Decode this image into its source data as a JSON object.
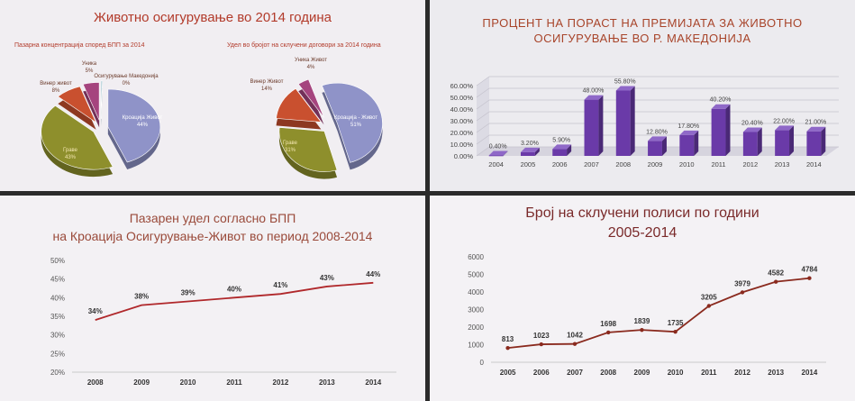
{
  "chart_data": [
    {
      "type": "pie",
      "title": "Животно осигурување во 2014 година",
      "subtitle": "Пазарна концентрација според БПП за 2014",
      "slices": [
        {
          "label": "Кроација Живот",
          "pct_label": "44%",
          "value": 44,
          "color": "#8f93c8"
        },
        {
          "label": "Граве",
          "pct_label": "43%",
          "value": 43,
          "color": "#8e8f2c"
        },
        {
          "label": "Винер живот",
          "pct_label": "8%",
          "value": 8,
          "color": "#c9502f"
        },
        {
          "label": "Уника",
          "pct_label": "5%",
          "value": 5,
          "color": "#a5447e"
        },
        {
          "label": "Осигурување Македонија",
          "pct_label": "0%",
          "value": 0,
          "color": "#8ab5c2"
        }
      ]
    },
    {
      "type": "pie",
      "subtitle": "Удел во бројот на склучени договори за 2014 година",
      "slices": [
        {
          "label": "Кроација - Живот",
          "pct_label": "51%",
          "value": 51,
          "color": "#8f93c8"
        },
        {
          "label": "Граве",
          "pct_label": "31%",
          "value": 31,
          "color": "#8e8f2c"
        },
        {
          "label": "Винер Живот",
          "pct_label": "14%",
          "value": 14,
          "color": "#c9502f"
        },
        {
          "label": "Уника Живот",
          "pct_label": "4%",
          "value": 4,
          "color": "#a5447e"
        }
      ]
    },
    {
      "type": "bar",
      "title_lines": [
        "ПРОЦЕНТ НА ПОРАСТ НА ПРЕМИЈАТА ЗА ЖИВОТНО",
        "ОСИГУРУВАЊЕ ВО Р. МАКЕДОНИЈА"
      ],
      "categories": [
        "2004",
        "2005",
        "2006",
        "2007",
        "2008",
        "2009",
        "2010",
        "2011",
        "2012",
        "2013",
        "2014"
      ],
      "values": [
        0.4,
        3.2,
        5.9,
        48.0,
        55.8,
        12.8,
        17.8,
        40.2,
        20.4,
        22.0,
        21.0
      ],
      "value_labels": [
        "0.40%",
        "3.20%",
        "5.90%",
        "48.00%",
        "55.80%",
        "12.80%",
        "17.80%",
        "40.20%",
        "20.40%",
        "22.00%",
        "21.00%"
      ],
      "y_ticks": [
        "0.00%",
        "10.00%",
        "20.00%",
        "30.00%",
        "40.00%",
        "50.00%",
        "60.00%"
      ],
      "ylim": [
        0,
        60
      ],
      "bar_color": "#6a3aa8"
    },
    {
      "type": "line",
      "title_lines": [
        "Пазарен удел согласно БПП",
        "на Кроација Осигурување-Живот во период 2008-2014"
      ],
      "categories": [
        "2008",
        "2009",
        "2010",
        "2011",
        "2012",
        "2013",
        "2014"
      ],
      "values": [
        34,
        38,
        39,
        40,
        41,
        43,
        44
      ],
      "value_labels": [
        "34%",
        "38%",
        "39%",
        "40%",
        "41%",
        "43%",
        "44%"
      ],
      "y_ticks": [
        "20%",
        "25%",
        "30%",
        "35%",
        "40%",
        "45%",
        "50%"
      ],
      "ylim": [
        20,
        50
      ],
      "line_color": "#b0282b"
    },
    {
      "type": "line",
      "title_lines": [
        "Број на склучени полиси по години",
        "2005-2014"
      ],
      "categories": [
        "2005",
        "2006",
        "2007",
        "2008",
        "2009",
        "2010",
        "2011",
        "2012",
        "2013",
        "2014"
      ],
      "values": [
        813,
        1023,
        1042,
        1698,
        1839,
        1735,
        3205,
        3979,
        4582,
        4784
      ],
      "value_labels": [
        "813",
        "1023",
        "1042",
        "1698",
        "1839",
        "1735",
        "3205",
        "3979",
        "4582",
        "4784"
      ],
      "y_ticks": [
        "0",
        "1000",
        "2000",
        "3000",
        "4000",
        "5000",
        "6000"
      ],
      "ylim": [
        0,
        6000
      ],
      "line_color": "#8a2a1e"
    }
  ]
}
